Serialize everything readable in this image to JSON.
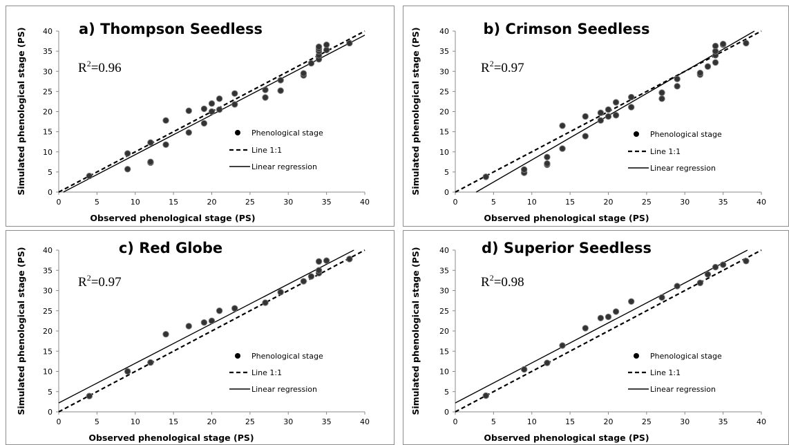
{
  "chart_data": [
    {
      "type": "scatter",
      "title": "a) Thompson Seedless",
      "xlabel": "Observed phenological stage (PS)",
      "ylabel": "Simulated phenological stage (PS)",
      "xlim": [
        0,
        40
      ],
      "ylim": [
        0,
        40
      ],
      "xticks": [
        "0",
        "5",
        "10",
        "15",
        "20",
        "25",
        "30",
        "35",
        "40"
      ],
      "yticks": [
        "0",
        "5",
        "10",
        "15",
        "20",
        "25",
        "30",
        "35",
        "40"
      ],
      "r2_base": "R",
      "r2_sup": "2",
      "r2_value": "=0.96",
      "legend": [
        "Phenological stage",
        "Line 1:1",
        "Linear regression"
      ],
      "legend_position": "right",
      "grid": false,
      "regression": {
        "slope": 0.99,
        "intercept": -0.6
      },
      "points": [
        [
          4,
          4
        ],
        [
          9,
          5.7
        ],
        [
          9,
          9.6
        ],
        [
          12,
          7.3
        ],
        [
          12,
          7.5
        ],
        [
          12,
          12.3
        ],
        [
          14,
          11.8
        ],
        [
          14,
          17.8
        ],
        [
          17,
          14.8
        ],
        [
          17,
          20.2
        ],
        [
          19,
          17.1
        ],
        [
          19,
          20.7
        ],
        [
          20,
          20
        ],
        [
          20,
          22
        ],
        [
          21,
          20.5
        ],
        [
          21,
          23.2
        ],
        [
          23,
          21.8
        ],
        [
          23,
          24.5
        ],
        [
          27,
          23.5
        ],
        [
          27,
          25.4
        ],
        [
          29,
          25.2
        ],
        [
          29,
          27.8
        ],
        [
          32,
          29
        ],
        [
          32,
          29.5
        ],
        [
          33,
          32
        ],
        [
          34,
          33
        ],
        [
          34,
          34
        ],
        [
          34,
          35
        ],
        [
          34,
          35.6
        ],
        [
          34,
          36.1
        ],
        [
          35,
          35.3
        ],
        [
          35,
          36.6
        ],
        [
          38,
          37
        ]
      ]
    },
    {
      "type": "scatter",
      "title": "b) Crimson Seedless",
      "xlabel": "Observed phenological stage (PS)",
      "ylabel": "Simulated phenological stage (PS)",
      "xlim": [
        0,
        40
      ],
      "ylim": [
        0,
        40
      ],
      "xticks": [
        "0",
        "5",
        "10",
        "15",
        "20",
        "25",
        "30",
        "35",
        "40"
      ],
      "yticks": [
        "0",
        "5",
        "10",
        "15",
        "20",
        "25",
        "30",
        "35",
        "40"
      ],
      "r2_base": "R",
      "r2_sup": "2",
      "r2_value": "=0.97",
      "legend": [
        "Phenological stage",
        "Line 1:1",
        "Linear regression"
      ],
      "legend_position": "right",
      "grid": false,
      "regression": {
        "slope": 1.1,
        "intercept": -3.0
      },
      "points": [
        [
          4,
          3.8
        ],
        [
          9,
          4.8
        ],
        [
          9,
          5.6
        ],
        [
          12,
          6.8
        ],
        [
          12,
          7.1
        ],
        [
          12,
          8.7
        ],
        [
          14,
          10.8
        ],
        [
          14,
          16.5
        ],
        [
          17,
          13.9
        ],
        [
          17,
          18.8
        ],
        [
          19,
          17.8
        ],
        [
          19,
          19.7
        ],
        [
          20,
          18.8
        ],
        [
          20,
          20.5
        ],
        [
          21,
          19.1
        ],
        [
          21,
          22.3
        ],
        [
          23,
          21.1
        ],
        [
          23,
          23.6
        ],
        [
          27,
          23.2
        ],
        [
          27,
          24.7
        ],
        [
          29,
          26.3
        ],
        [
          29,
          28.1
        ],
        [
          32,
          29.2
        ],
        [
          32,
          29.6
        ],
        [
          33,
          31.2
        ],
        [
          34,
          32.2
        ],
        [
          34,
          34
        ],
        [
          34,
          35
        ],
        [
          34,
          36.3
        ],
        [
          35,
          36.6
        ],
        [
          35,
          36.8
        ],
        [
          38,
          37
        ]
      ]
    },
    {
      "type": "scatter",
      "title": "c) Red Globe",
      "xlabel": "Observed phenological stage (PS)",
      "ylabel": "Simulated phenological stage (PS)",
      "xlim": [
        0,
        40
      ],
      "ylim": [
        0,
        40
      ],
      "xticks": [
        "0",
        "5",
        "10",
        "15",
        "20",
        "25",
        "30",
        "35",
        "40"
      ],
      "yticks": [
        "0",
        "5",
        "10",
        "15",
        "20",
        "25",
        "30",
        "35",
        "40"
      ],
      "r2_base": "R",
      "r2_sup": "2",
      "r2_value": "=0.97",
      "legend": [
        "Phenological stage",
        "Line 1:1",
        "Linear regression"
      ],
      "legend_position": "right",
      "grid": false,
      "regression": {
        "slope": 0.98,
        "intercept": 2.2
      },
      "points": [
        [
          4,
          3.9
        ],
        [
          9,
          10
        ],
        [
          12,
          12.2
        ],
        [
          14,
          19.2
        ],
        [
          17,
          21.2
        ],
        [
          19,
          22.1
        ],
        [
          20,
          22.5
        ],
        [
          21,
          25
        ],
        [
          23,
          25.6
        ],
        [
          27,
          27
        ],
        [
          29,
          29.6
        ],
        [
          32,
          32.3
        ],
        [
          33,
          33.5
        ],
        [
          34,
          34.3
        ],
        [
          34,
          35
        ],
        [
          34,
          37.2
        ],
        [
          35,
          37.4
        ],
        [
          38,
          37.8
        ]
      ]
    },
    {
      "type": "scatter",
      "title": "d) Superior Seedless",
      "xlabel": "Observed phenological stage (PS)",
      "ylabel": "Simulated phenological stage (PS)",
      "xlim": [
        0,
        40
      ],
      "ylim": [
        0,
        40
      ],
      "xticks": [
        "0",
        "5",
        "10",
        "15",
        "20",
        "25",
        "30",
        "35",
        "40"
      ],
      "yticks": [
        "0",
        "5",
        "10",
        "15",
        "20",
        "25",
        "30",
        "35",
        "40"
      ],
      "r2_base": "R",
      "r2_sup": "2",
      "r2_value": "=0.98",
      "legend": [
        "Phenological stage",
        "Line 1:1",
        "Linear regression"
      ],
      "legend_position": "right",
      "grid": false,
      "regression": {
        "slope": 0.99,
        "intercept": 2.2
      },
      "points": [
        [
          4,
          4
        ],
        [
          9,
          10.5
        ],
        [
          12,
          12.1
        ],
        [
          14,
          16.4
        ],
        [
          17,
          20.7
        ],
        [
          19,
          23.2
        ],
        [
          20,
          23.5
        ],
        [
          21,
          24.8
        ],
        [
          23,
          27.3
        ],
        [
          27,
          28.3
        ],
        [
          29,
          31.1
        ],
        [
          32,
          31.9
        ],
        [
          33,
          34
        ],
        [
          34,
          35.8
        ],
        [
          35,
          36.4
        ],
        [
          38,
          37.3
        ]
      ]
    }
  ]
}
